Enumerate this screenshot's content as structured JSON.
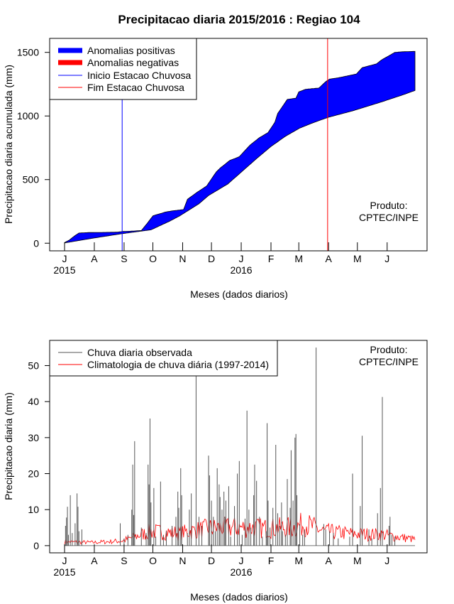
{
  "title": "Precipitacao diaria 2015/2016 : Regiao 104",
  "colors": {
    "positive": "#0000ff",
    "negative": "#ff0000",
    "onset_line": "#0000ff",
    "end_line": "#ff0000",
    "observed": "#555555",
    "climatology": "#ff0000"
  },
  "chart_data": [
    {
      "type": "area",
      "name": "cumulative",
      "ylabel": "Precipitacao diaria acumulada (mm)",
      "xlabel": "Meses (dados diarios)",
      "ylim": [
        -60,
        1610
      ],
      "yticks": [
        0,
        500,
        1000,
        1500
      ],
      "n_days": 366,
      "month_labels": [
        "J",
        "A",
        "S",
        "O",
        "N",
        "D",
        "J",
        "F",
        "M",
        "A",
        "M",
        "J"
      ],
      "month_days": [
        0,
        31,
        62,
        92,
        123,
        153,
        184,
        215,
        244,
        275,
        305,
        336
      ],
      "year_labels": [
        {
          "day": 0,
          "text": "2015"
        },
        {
          "day": 184,
          "text": "2016"
        }
      ],
      "observed_cumulative": [
        [
          0,
          5
        ],
        [
          5,
          25
        ],
        [
          10,
          55
        ],
        [
          15,
          80
        ],
        [
          25,
          84
        ],
        [
          40,
          85
        ],
        [
          55,
          87
        ],
        [
          60,
          92
        ],
        [
          70,
          95
        ],
        [
          80,
          100
        ],
        [
          86,
          155
        ],
        [
          92,
          215
        ],
        [
          96,
          225
        ],
        [
          101,
          235
        ],
        [
          105,
          245
        ],
        [
          113,
          255
        ],
        [
          124,
          265
        ],
        [
          128,
          345
        ],
        [
          138,
          400
        ],
        [
          148,
          450
        ],
        [
          158,
          560
        ],
        [
          162,
          590
        ],
        [
          172,
          650
        ],
        [
          182,
          680
        ],
        [
          193,
          770
        ],
        [
          203,
          830
        ],
        [
          212,
          870
        ],
        [
          219,
          950
        ],
        [
          222,
          1020
        ],
        [
          232,
          1130
        ],
        [
          241,
          1140
        ],
        [
          244,
          1190
        ],
        [
          251,
          1210
        ],
        [
          265,
          1220
        ],
        [
          272,
          1270
        ],
        [
          276,
          1290
        ],
        [
          285,
          1300
        ],
        [
          304,
          1330
        ],
        [
          310,
          1380
        ],
        [
          325,
          1410
        ],
        [
          330,
          1440
        ],
        [
          337,
          1470
        ],
        [
          344,
          1500
        ],
        [
          352,
          1505
        ],
        [
          365,
          1508
        ]
      ],
      "climatology_cumulative": [
        [
          0,
          2
        ],
        [
          30,
          40
        ],
        [
          60,
          75
        ],
        [
          90,
          105
        ],
        [
          110,
          175
        ],
        [
          120,
          215
        ],
        [
          140,
          310
        ],
        [
          150,
          375
        ],
        [
          170,
          465
        ],
        [
          185,
          565
        ],
        [
          200,
          665
        ],
        [
          215,
          760
        ],
        [
          230,
          840
        ],
        [
          245,
          905
        ],
        [
          260,
          950
        ],
        [
          275,
          990
        ],
        [
          300,
          1040
        ],
        [
          330,
          1110
        ],
        [
          350,
          1160
        ],
        [
          365,
          1200
        ]
      ],
      "markers": [
        {
          "name": "Inicio Estacao Chuvosa",
          "day": 60
        },
        {
          "name": "Fim Estacao Chuvosa",
          "day": 274
        }
      ],
      "legend": {
        "position": "top-left",
        "entries": [
          "Anomalias positivas",
          "Anomalias negativas",
          "Inicio Estacao Chuvosa",
          "Fim Estacao Chuvosa"
        ]
      },
      "annotation": [
        "Produto:",
        "CPTEC/INPE"
      ]
    },
    {
      "type": "bar",
      "name": "daily",
      "ylabel": "Precipitacao diaria (mm)",
      "xlabel": "Meses (dados diarios)",
      "ylim": [
        -2,
        57
      ],
      "yticks": [
        0,
        10,
        20,
        30,
        40,
        50
      ],
      "n_days": 366,
      "month_labels": [
        "J",
        "A",
        "S",
        "O",
        "N",
        "D",
        "J",
        "F",
        "M",
        "A",
        "M",
        "J"
      ],
      "month_days": [
        0,
        31,
        62,
        92,
        123,
        153,
        184,
        215,
        244,
        275,
        305,
        336
      ],
      "year_labels": [
        {
          "day": 0,
          "text": "2015"
        },
        {
          "day": 184,
          "text": "2016"
        }
      ],
      "observed_days": [
        [
          1,
          5.5
        ],
        [
          2,
          7.8
        ],
        [
          3,
          10.8
        ],
        [
          4,
          3.0
        ],
        [
          6,
          14.0
        ],
        [
          8,
          3.5
        ],
        [
          11,
          6.2
        ],
        [
          13,
          14.5
        ],
        [
          14,
          10.8
        ],
        [
          15,
          4.0
        ],
        [
          18,
          4.5
        ],
        [
          58,
          6.2
        ],
        [
          62,
          2.0
        ],
        [
          66,
          3.0
        ],
        [
          70,
          10.0
        ],
        [
          71,
          22.5
        ],
        [
          72,
          8.5
        ],
        [
          73,
          29.0
        ],
        [
          80,
          5.0
        ],
        [
          85,
          3.5
        ],
        [
          87,
          22.5
        ],
        [
          88,
          17.0
        ],
        [
          89,
          35.3
        ],
        [
          90,
          12.0
        ],
        [
          93,
          16.0
        ],
        [
          95,
          2.5
        ],
        [
          100,
          17.8
        ],
        [
          103,
          3.0
        ],
        [
          106,
          4.0
        ],
        [
          112,
          5.5
        ],
        [
          116,
          8.0
        ],
        [
          118,
          15.0
        ],
        [
          119,
          10.5
        ],
        [
          121,
          21.5
        ],
        [
          122,
          14.0
        ],
        [
          128,
          3.5
        ],
        [
          130,
          10.0
        ],
        [
          132,
          14.5
        ],
        [
          137,
          47.0
        ],
        [
          140,
          8.0
        ],
        [
          143,
          5.5
        ],
        [
          150,
          25.0
        ],
        [
          151,
          19.5
        ],
        [
          153,
          12.5
        ],
        [
          155,
          8.0
        ],
        [
          157,
          4.0
        ],
        [
          159,
          21.5
        ],
        [
          161,
          17.0
        ],
        [
          162,
          13.5
        ],
        [
          164,
          10.0
        ],
        [
          166,
          15.0
        ],
        [
          167,
          8.0
        ],
        [
          168,
          12.5
        ],
        [
          171,
          16.5
        ],
        [
          173,
          2.5
        ],
        [
          177,
          11.0
        ],
        [
          180,
          20.0
        ],
        [
          182,
          23.5
        ],
        [
          185,
          3.0
        ],
        [
          188,
          7.5
        ],
        [
          190,
          37.5
        ],
        [
          192,
          10.0
        ],
        [
          194,
          5.0
        ],
        [
          197,
          14.0
        ],
        [
          198,
          22.5
        ],
        [
          200,
          18.0
        ],
        [
          203,
          8.0
        ],
        [
          206,
          2.5
        ],
        [
          210,
          4.0
        ],
        [
          211,
          34.0
        ],
        [
          212,
          12.5
        ],
        [
          214,
          5.0
        ],
        [
          217,
          10.5
        ],
        [
          220,
          28.0
        ],
        [
          222,
          9.0
        ],
        [
          224,
          5.5
        ],
        [
          226,
          12.0
        ],
        [
          227,
          4.0
        ],
        [
          230,
          3.0
        ],
        [
          232,
          18.5
        ],
        [
          235,
          10.5
        ],
        [
          236,
          26.5
        ],
        [
          238,
          12.5
        ],
        [
          240,
          30.0
        ],
        [
          241,
          31.0
        ],
        [
          242,
          14.0
        ],
        [
          245,
          6.0
        ],
        [
          248,
          3.0
        ],
        [
          250,
          4.5
        ],
        [
          262,
          55.0
        ],
        [
          270,
          6.0
        ],
        [
          272,
          4.5
        ],
        [
          276,
          4.0
        ],
        [
          280,
          3.5
        ],
        [
          285,
          2.0
        ],
        [
          297,
          2.5
        ],
        [
          300,
          20.0
        ],
        [
          308,
          11.0
        ],
        [
          310,
          30.5
        ],
        [
          317,
          4.5
        ],
        [
          320,
          2.0
        ],
        [
          326,
          9.0
        ],
        [
          329,
          16.0
        ],
        [
          331,
          41.3
        ],
        [
          338,
          5.5
        ],
        [
          339,
          8.0
        ],
        [
          341,
          3.0
        ],
        [
          344,
          2.5
        ]
      ],
      "climatology_envelope": [
        [
          0,
          1.2
        ],
        [
          30,
          1.0
        ],
        [
          60,
          1.5
        ],
        [
          90,
          4.5
        ],
        [
          120,
          4.0
        ],
        [
          150,
          5.5
        ],
        [
          180,
          5.8
        ],
        [
          210,
          5.5
        ],
        [
          240,
          5.8
        ],
        [
          250,
          7.0
        ],
        [
          270,
          4.5
        ],
        [
          300,
          3.8
        ],
        [
          330,
          3.5
        ],
        [
          365,
          2.0
        ]
      ],
      "legend": {
        "position": "top-left",
        "entries": [
          "Chuva diaria observada",
          "Climatologia de chuva diária (1997-2014)"
        ]
      },
      "annotation": [
        "Produto:",
        "CPTEC/INPE"
      ]
    }
  ]
}
